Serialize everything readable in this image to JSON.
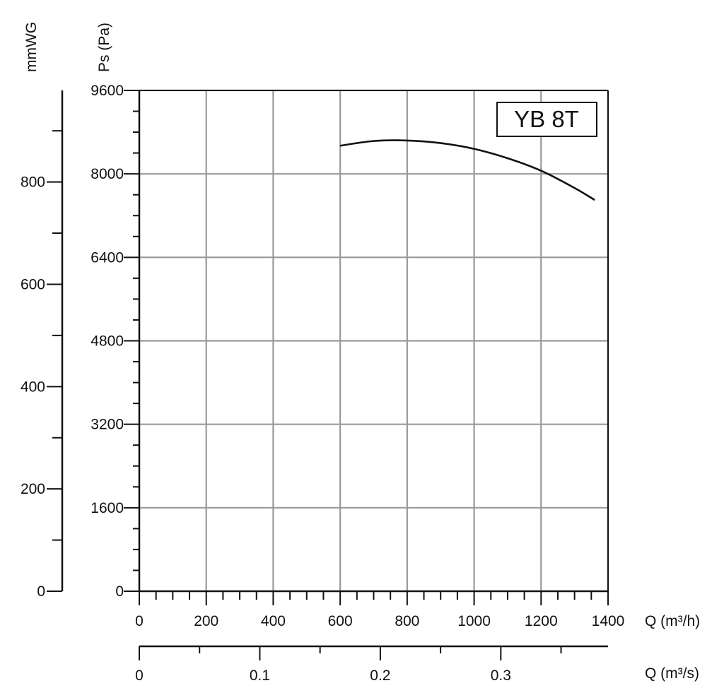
{
  "chart_data": {
    "type": "line",
    "model_label": "YB 8T",
    "x_axis": {
      "label": "Q (m³/h)",
      "range": [
        0,
        1400
      ],
      "ticks": [
        "0",
        "200",
        "400",
        "600",
        "800",
        "1000",
        "1200",
        "1400"
      ],
      "grid": true
    },
    "x2_axis": {
      "label": "Q (m³/s)",
      "range": [
        0,
        0.389
      ],
      "ticks": [
        "0",
        "0.1",
        "0.2",
        "0.3"
      ]
    },
    "y_axis": {
      "label": "Ps (Pa)",
      "range": [
        0,
        9600
      ],
      "ticks": [
        "0",
        "1600",
        "3200",
        "4800",
        "6400",
        "8000",
        "9600"
      ],
      "grid": true
    },
    "y2_axis": {
      "label": "mmWG",
      "range": [
        0,
        979
      ],
      "ticks": [
        "0",
        "200",
        "400",
        "600",
        "800"
      ]
    },
    "series": [
      {
        "x": [
          600,
          700,
          800,
          900,
          1000,
          1100,
          1200,
          1300,
          1360
        ],
        "y": [
          8540,
          8630,
          8640,
          8590,
          8480,
          8300,
          8060,
          7730,
          7500
        ]
      }
    ]
  }
}
